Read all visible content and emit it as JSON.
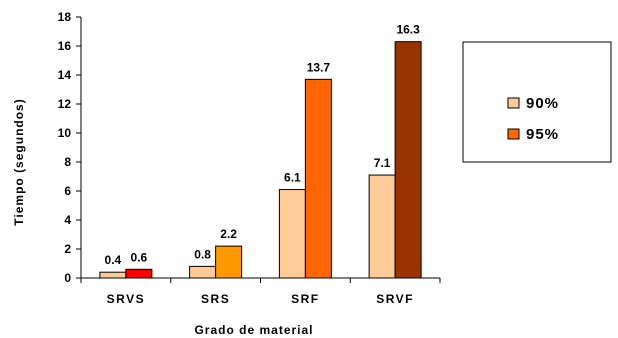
{
  "chart_data": {
    "type": "bar",
    "categories": [
      "SRVS",
      "SRS",
      "SRF",
      "SRVF"
    ],
    "series": [
      {
        "name": "90%",
        "values": [
          0.4,
          0.8,
          6.1,
          7.1
        ],
        "labels": [
          "0.4",
          "0.8",
          "6.1",
          "7.1"
        ],
        "colors": [
          "#ffcc99",
          "#ffcc99",
          "#ffcc99",
          "#ffcc99"
        ],
        "legend_color": "#ffcc99"
      },
      {
        "name": "95%",
        "values": [
          0.6,
          2.2,
          13.7,
          16.3
        ],
        "labels": [
          "0.6",
          "2.2",
          "13.7",
          "16.3"
        ],
        "colors": [
          "#ff0000",
          "#ff9900",
          "#ff6600",
          "#993300"
        ],
        "legend_color": "#ff6600"
      }
    ],
    "xlabel": "Grado de material",
    "ylabel": "Tiempo (segundos)",
    "ylim": [
      0,
      18
    ],
    "yticks": [
      0,
      2,
      4,
      6,
      8,
      10,
      12,
      14,
      16,
      18
    ],
    "grid": false,
    "legend_position": "right"
  }
}
